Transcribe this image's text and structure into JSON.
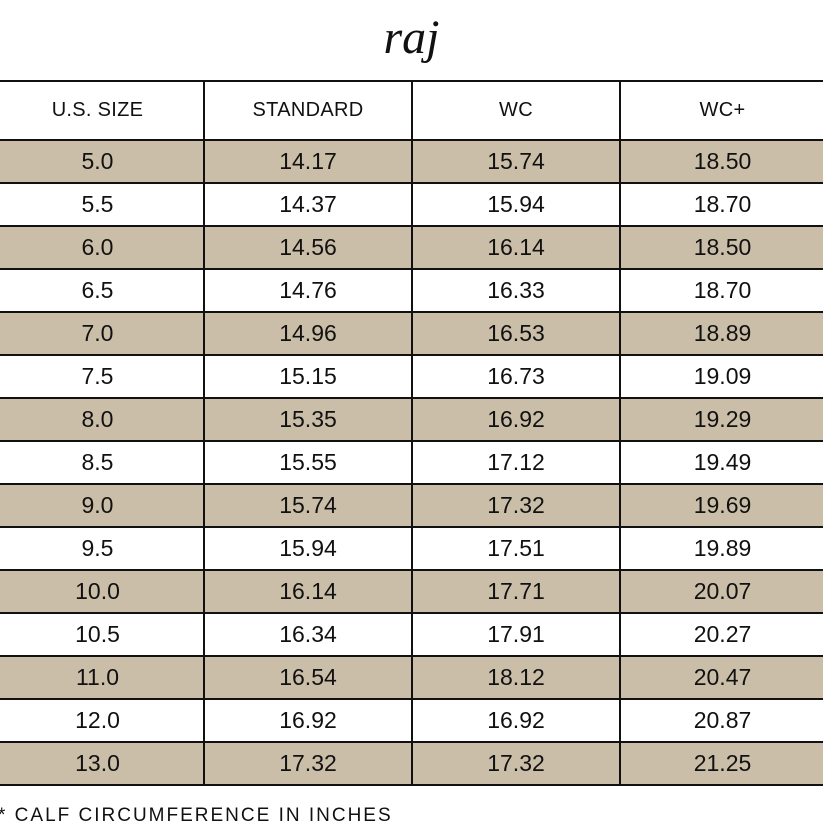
{
  "brand": "raj",
  "table": {
    "headers": [
      "U.S. SIZE",
      "STANDARD",
      "WC",
      "WC+"
    ],
    "rows": [
      [
        "5.0",
        "14.17",
        "15.74",
        "18.50"
      ],
      [
        "5.5",
        "14.37",
        "15.94",
        "18.70"
      ],
      [
        "6.0",
        "14.56",
        "16.14",
        "18.50"
      ],
      [
        "6.5",
        "14.76",
        "16.33",
        "18.70"
      ],
      [
        "7.0",
        "14.96",
        "16.53",
        "18.89"
      ],
      [
        "7.5",
        "15.15",
        "16.73",
        "19.09"
      ],
      [
        "8.0",
        "15.35",
        "16.92",
        "19.29"
      ],
      [
        "8.5",
        "15.55",
        "17.12",
        "19.49"
      ],
      [
        "9.0",
        "15.74",
        "17.32",
        "19.69"
      ],
      [
        "9.5",
        "15.94",
        "17.51",
        "19.89"
      ],
      [
        "10.0",
        "16.14",
        "17.71",
        "20.07"
      ],
      [
        "10.5",
        "16.34",
        "17.91",
        "20.27"
      ],
      [
        "11.0",
        "16.54",
        "18.12",
        "20.47"
      ],
      [
        "12.0",
        "16.92",
        "16.92",
        "20.87"
      ],
      [
        "13.0",
        "17.32",
        "17.32",
        "21.25"
      ]
    ]
  },
  "footnote": "* CALF CIRCUMFERENCE IN INCHES",
  "colors": {
    "stripe": "#cbbea8",
    "border": "#111111",
    "background": "#ffffff"
  }
}
